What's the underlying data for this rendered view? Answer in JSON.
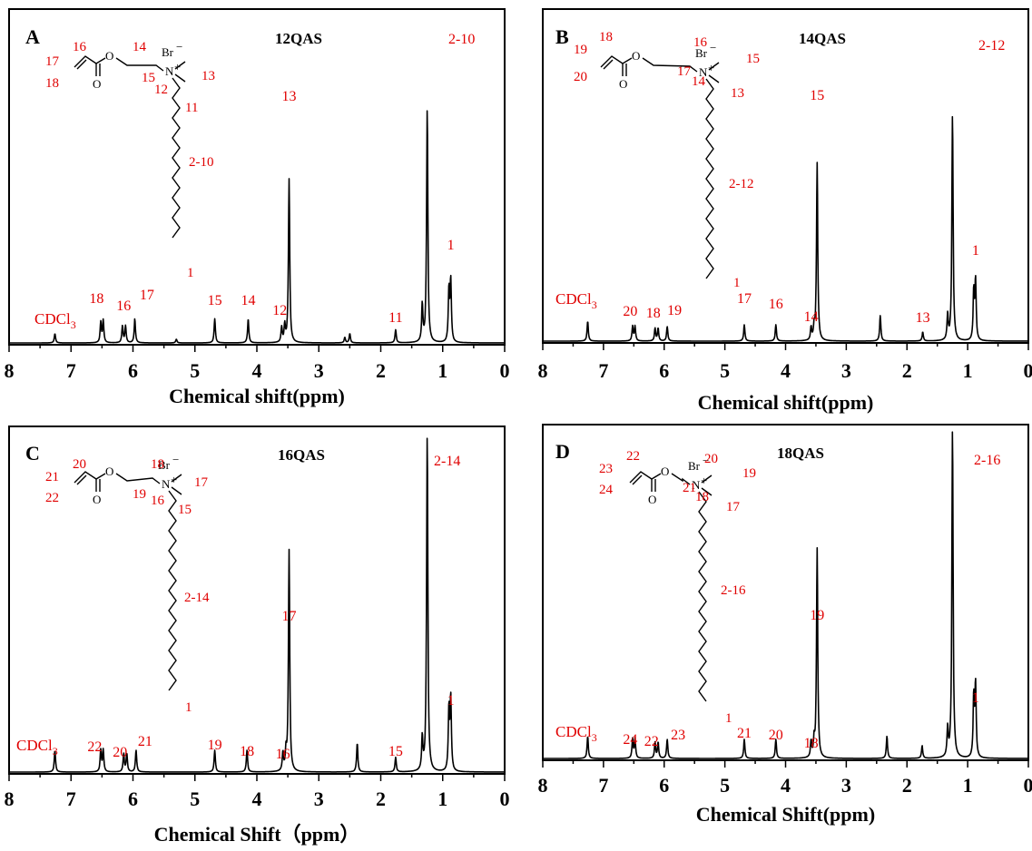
{
  "chart_data": [
    {
      "type": "line",
      "panel": "A",
      "title": "12QAS",
      "xlabel": "Chemical shift(ppm)",
      "xlim": [
        8,
        0
      ],
      "x_ticks": [
        8,
        7,
        6,
        5,
        4,
        3,
        2,
        1,
        0
      ],
      "big_label": "2-10",
      "solvent_label": "CDCl3",
      "solvent_shift": 7.26,
      "peaks": [
        {
          "shift": 7.26,
          "intensity": 0.05
        },
        {
          "shift": 6.52,
          "intensity": 0.11
        },
        {
          "shift": 6.48,
          "intensity": 0.12
        },
        {
          "shift": 6.17,
          "intensity": 0.09
        },
        {
          "shift": 6.12,
          "intensity": 0.09
        },
        {
          "shift": 5.97,
          "intensity": 0.13
        },
        {
          "shift": 5.3,
          "intensity": 0.02
        },
        {
          "shift": 4.68,
          "intensity": 0.13
        },
        {
          "shift": 4.14,
          "intensity": 0.13
        },
        {
          "shift": 3.6,
          "intensity": 0.08
        },
        {
          "shift": 3.55,
          "intensity": 0.09
        },
        {
          "shift": 3.48,
          "intensity": 0.88
        },
        {
          "shift": 2.58,
          "intensity": 0.03
        },
        {
          "shift": 2.5,
          "intensity": 0.05
        },
        {
          "shift": 1.76,
          "intensity": 0.07
        },
        {
          "shift": 1.33,
          "intensity": 0.2
        },
        {
          "shift": 1.25,
          "intensity": 1.26
        },
        {
          "shift": 0.9,
          "intensity": 0.28
        },
        {
          "shift": 0.87,
          "intensity": 0.33
        }
      ],
      "peak_labels": [
        {
          "text": "18",
          "shift": 6.5
        },
        {
          "text": "16",
          "shift": 6.15
        },
        {
          "text": "17",
          "shift": 5.95
        },
        {
          "text": "15",
          "shift": 4.68
        },
        {
          "text": "14",
          "shift": 4.14
        },
        {
          "text": "12",
          "shift": 3.6
        },
        {
          "text": "13",
          "shift": 3.48
        },
        {
          "text": "11",
          "shift": 1.76
        },
        {
          "text": "1",
          "shift": 0.87
        }
      ],
      "structure_labels": [
        "16",
        "17",
        "18",
        "14",
        "15",
        "12",
        "13",
        "11",
        "2-10",
        "1"
      ]
    },
    {
      "type": "line",
      "panel": "B",
      "title": "14QAS",
      "xlabel": "Chemical shift(ppm)",
      "xlim": [
        8,
        0
      ],
      "x_ticks": [
        8,
        7,
        6,
        5,
        4,
        3,
        2,
        1,
        0
      ],
      "big_label": "2-12",
      "solvent_label": "CDCl3",
      "solvent_shift": 7.26,
      "peaks": [
        {
          "shift": 7.26,
          "intensity": 0.11
        },
        {
          "shift": 6.52,
          "intensity": 0.08
        },
        {
          "shift": 6.48,
          "intensity": 0.08
        },
        {
          "shift": 6.15,
          "intensity": 0.07
        },
        {
          "shift": 6.1,
          "intensity": 0.07
        },
        {
          "shift": 5.95,
          "intensity": 0.08
        },
        {
          "shift": 4.68,
          "intensity": 0.09
        },
        {
          "shift": 4.16,
          "intensity": 0.09
        },
        {
          "shift": 3.58,
          "intensity": 0.07
        },
        {
          "shift": 3.53,
          "intensity": 0.07
        },
        {
          "shift": 3.48,
          "intensity": 0.98
        },
        {
          "shift": 2.44,
          "intensity": 0.14
        },
        {
          "shift": 1.74,
          "intensity": 0.05
        },
        {
          "shift": 1.33,
          "intensity": 0.14
        },
        {
          "shift": 1.25,
          "intensity": 1.25
        },
        {
          "shift": 0.9,
          "intensity": 0.27
        },
        {
          "shift": 0.87,
          "intensity": 0.33
        }
      ],
      "peak_labels": [
        {
          "text": "20",
          "shift": 6.5
        },
        {
          "text": "18",
          "shift": 6.12
        },
        {
          "text": "19",
          "shift": 5.95
        },
        {
          "text": "17",
          "shift": 4.68
        },
        {
          "text": "16",
          "shift": 4.16
        },
        {
          "text": "14",
          "shift": 3.58
        },
        {
          "text": "15",
          "shift": 3.48
        },
        {
          "text": "13",
          "shift": 1.74
        },
        {
          "text": "1",
          "shift": 0.87
        }
      ],
      "structure_labels": [
        "18",
        "19",
        "20",
        "16",
        "15",
        "17",
        "14",
        "13",
        "2-12",
        "1"
      ]
    },
    {
      "type": "line",
      "panel": "C",
      "title": "16QAS",
      "xlabel": "Chemical Shift（ppm）",
      "xlim": [
        8,
        0
      ],
      "x_ticks": [
        8,
        7,
        6,
        5,
        4,
        3,
        2,
        1,
        0
      ],
      "big_label": "2-14",
      "solvent_label": "CDCl3",
      "solvent_shift": 7.26,
      "peaks": [
        {
          "shift": 7.26,
          "intensity": 0.06
        },
        {
          "shift": 6.52,
          "intensity": 0.06
        },
        {
          "shift": 6.48,
          "intensity": 0.06
        },
        {
          "shift": 6.15,
          "intensity": 0.05
        },
        {
          "shift": 6.1,
          "intensity": 0.05
        },
        {
          "shift": 5.95,
          "intensity": 0.06
        },
        {
          "shift": 4.68,
          "intensity": 0.06
        },
        {
          "shift": 4.16,
          "intensity": 0.06
        },
        {
          "shift": 3.58,
          "intensity": 0.05
        },
        {
          "shift": 3.53,
          "intensity": 0.05
        },
        {
          "shift": 3.48,
          "intensity": 0.61
        },
        {
          "shift": 2.38,
          "intensity": 0.08
        },
        {
          "shift": 1.76,
          "intensity": 0.04
        },
        {
          "shift": 1.33,
          "intensity": 0.09
        },
        {
          "shift": 1.25,
          "intensity": 0.93
        },
        {
          "shift": 0.9,
          "intensity": 0.17
        },
        {
          "shift": 0.87,
          "intensity": 0.2
        }
      ],
      "peak_labels": [
        {
          "text": "22",
          "shift": 6.5
        },
        {
          "text": "20",
          "shift": 6.12
        },
        {
          "text": "21",
          "shift": 5.95
        },
        {
          "text": "19",
          "shift": 4.68
        },
        {
          "text": "18",
          "shift": 4.16
        },
        {
          "text": "16",
          "shift": 3.58
        },
        {
          "text": "17",
          "shift": 3.48
        },
        {
          "text": "15",
          "shift": 1.76
        },
        {
          "text": "1",
          "shift": 0.87
        }
      ],
      "structure_labels": [
        "20",
        "21",
        "22",
        "18",
        "17",
        "19",
        "16",
        "15",
        "2-14",
        "1"
      ]
    },
    {
      "type": "line",
      "panel": "D",
      "title": "18QAS",
      "xlabel": "Chemical Shift(ppm)",
      "xlim": [
        8,
        0
      ],
      "x_ticks": [
        8,
        7,
        6,
        5,
        4,
        3,
        2,
        1,
        0
      ],
      "big_label": "2-16",
      "solvent_label": "CDCl3",
      "solvent_shift": 7.26,
      "peaks": [
        {
          "shift": 7.26,
          "intensity": 0.07
        },
        {
          "shift": 6.52,
          "intensity": 0.06
        },
        {
          "shift": 6.48,
          "intensity": 0.06
        },
        {
          "shift": 6.15,
          "intensity": 0.05
        },
        {
          "shift": 6.1,
          "intensity": 0.05
        },
        {
          "shift": 5.95,
          "intensity": 0.06
        },
        {
          "shift": 4.68,
          "intensity": 0.06
        },
        {
          "shift": 4.16,
          "intensity": 0.06
        },
        {
          "shift": 3.58,
          "intensity": 0.05
        },
        {
          "shift": 3.53,
          "intensity": 0.05
        },
        {
          "shift": 3.48,
          "intensity": 0.66
        },
        {
          "shift": 2.33,
          "intensity": 0.07
        },
        {
          "shift": 1.75,
          "intensity": 0.04
        },
        {
          "shift": 1.33,
          "intensity": 0.09
        },
        {
          "shift": 1.25,
          "intensity": 1.04
        },
        {
          "shift": 0.9,
          "intensity": 0.19
        },
        {
          "shift": 0.87,
          "intensity": 0.23
        }
      ],
      "peak_labels": [
        {
          "text": "24",
          "shift": 6.5
        },
        {
          "text": "22",
          "shift": 6.12
        },
        {
          "text": "23",
          "shift": 5.95
        },
        {
          "text": "21",
          "shift": 4.68
        },
        {
          "text": "20",
          "shift": 4.16
        },
        {
          "text": "18",
          "shift": 3.58
        },
        {
          "text": "19",
          "shift": 3.48
        },
        {
          "text": "1",
          "shift": 0.87
        }
      ],
      "structure_labels": [
        "22",
        "23",
        "24",
        "20",
        "19",
        "21",
        "18",
        "17",
        "2-16",
        "1"
      ]
    }
  ]
}
